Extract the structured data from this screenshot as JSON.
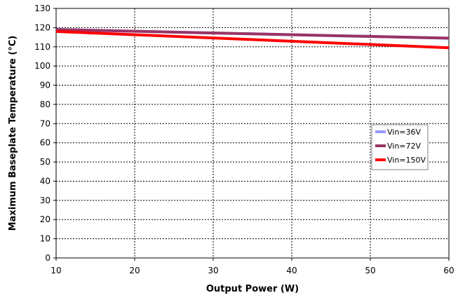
{
  "chart_data": {
    "type": "line",
    "title": "",
    "xlabel": "Output Power (W)",
    "ylabel": "Maximum Baseplate Temperature (°C)",
    "xlim": [
      10,
      60
    ],
    "ylim": [
      0,
      130
    ],
    "x_ticks": [
      10,
      20,
      30,
      40,
      50,
      60
    ],
    "y_ticks": [
      0,
      10,
      20,
      30,
      40,
      50,
      60,
      70,
      80,
      90,
      100,
      110,
      120,
      130
    ],
    "grid": true,
    "legend_position": "right",
    "series": [
      {
        "name": "Vin=36V",
        "color": "#9999ff",
        "x": [
          10,
          60
        ],
        "y": [
          119,
          114.5
        ]
      },
      {
        "name": "Vin=72V",
        "color": "#993366",
        "x": [
          10,
          60
        ],
        "y": [
          119,
          114.5
        ]
      },
      {
        "name": "Vin=150V",
        "color": "#ff0000",
        "x": [
          10,
          60
        ],
        "y": [
          118,
          109.5
        ]
      }
    ]
  }
}
